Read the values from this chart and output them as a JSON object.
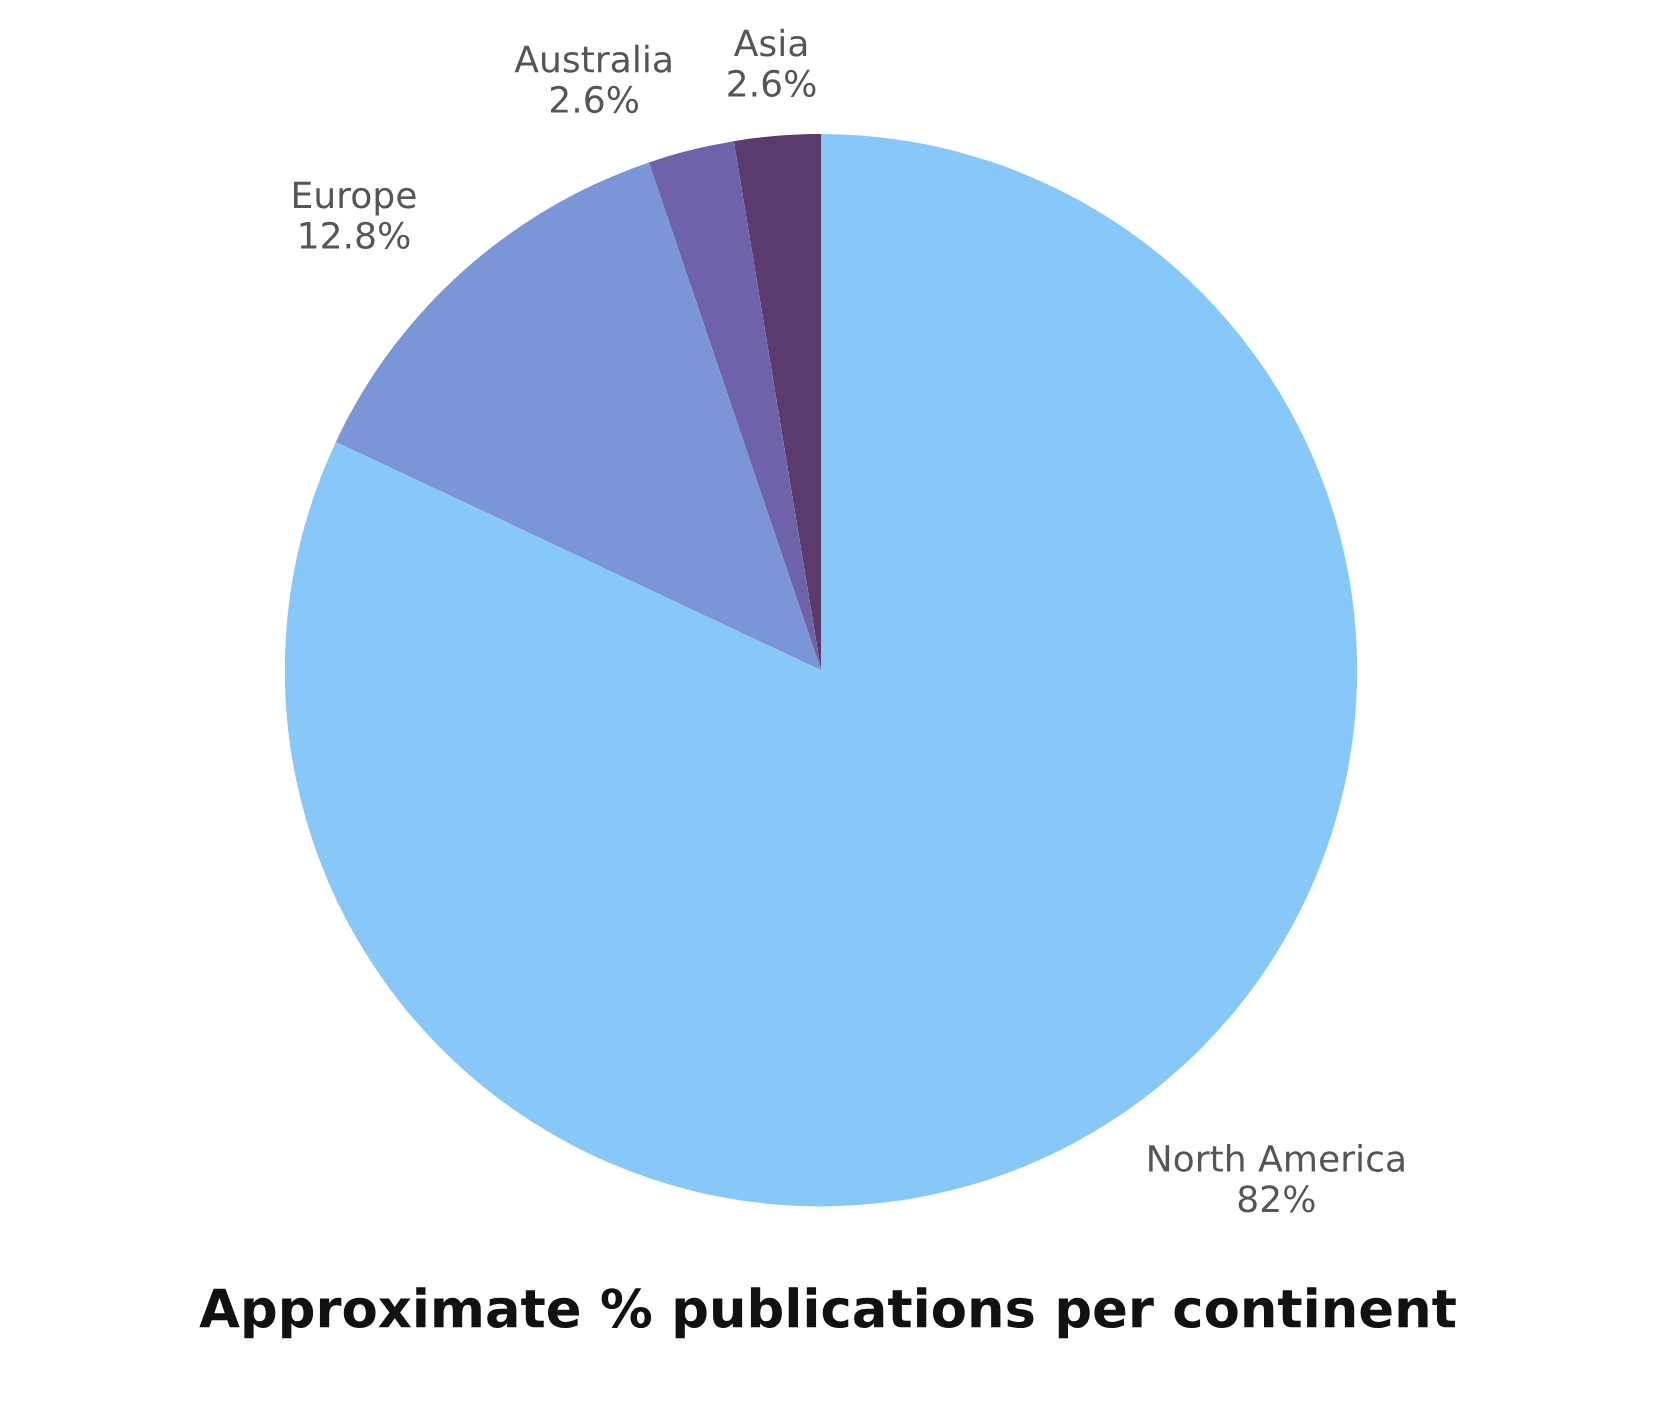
{
  "chart_data": {
    "type": "pie",
    "title": "Approximate % publications per continent",
    "categories": [
      "North America",
      "Europe",
      "Australia",
      "Asia"
    ],
    "values": [
      82,
      12.8,
      2.6,
      2.6
    ],
    "value_labels": [
      "82%",
      "12.8%",
      "2.6%",
      "2.6%"
    ],
    "colors": [
      "#87c8f8",
      "#7b96d8",
      "#6e62a8",
      "#5b3a6e"
    ]
  }
}
